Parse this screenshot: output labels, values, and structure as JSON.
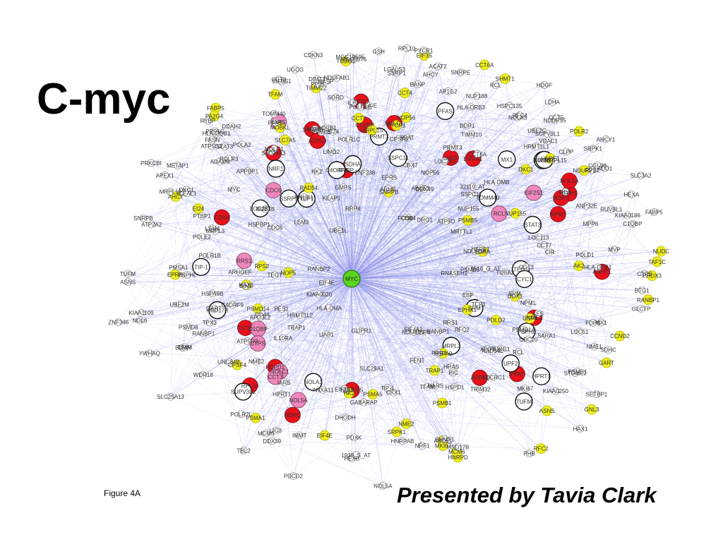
{
  "slide": {
    "title": "C-myc",
    "caption": "Figure 4A",
    "presenter": "Presented by Tavia Clark"
  },
  "colors": {
    "edge": "#8a90e8",
    "hub": "#5ad41e",
    "red": "#e8101a",
    "pink": "#ef86bc",
    "yellow": "#f0ef1c",
    "white": "#ffffff"
  },
  "network": {
    "hub": "MYC",
    "red_nodes": [
      "ARHT1",
      "NDUFB5",
      "C1QBP",
      "SDHC",
      "NOLC1",
      "SNRPE",
      "IARS",
      "RPL10",
      "RYBP",
      "ATP5O",
      "CTPS",
      "PPAT",
      "BOP1",
      "SLC25A3",
      "NOL5A",
      "HSPD1",
      "EIF4A1",
      "APEX1",
      "CCT5",
      "NPM1",
      "TFRC",
      "NME1",
      "CDK4"
    ],
    "pink_nodes": [
      "C1QBP",
      "RCL",
      "NOLC1",
      "IARS",
      "RRS1",
      "CTPS",
      "CCT3",
      "NOL5A",
      "CDC6",
      "EIF2S1"
    ],
    "white_nodes": [
      "MX1",
      "NRF1",
      "TIP-1",
      "STAT3",
      "SDHA",
      "LOC283",
      "NOLA3",
      "PFAS",
      "HPRT1",
      "PSPHL",
      "MRPL3",
      "TEGT",
      "TCP1",
      "HSD17B",
      "TUFM",
      "LIMD2",
      "POLR1C",
      "SSPC11",
      "CYC1",
      "SRM",
      "SSRP1",
      "PRMT3",
      "C4ORF9",
      "TOMM40",
      "SUPV3L1",
      "UPF2"
    ],
    "yellow_nodes": [
      "PRDX3",
      "FABP5",
      "RANBP1",
      "AHCY",
      "PSMA5",
      "ABCE1",
      "CCND2",
      "TIMM22",
      "NOP5",
      "GNL3",
      "ASNS",
      "PSMB5",
      "POLR2",
      "TAF1C",
      "NOP56",
      "DKC1",
      "NME2",
      "HSPE1",
      "PSMA1",
      "MRPL15",
      "CCT7",
      "PSMB1",
      "NUDC",
      "PA2G4",
      "NUP155",
      "RAD54",
      "EPRS",
      "EIF3S",
      "HAX1",
      "PSMD14",
      "MOBKL",
      "EI24",
      "PYCR1",
      "SNRPB",
      "EIF4E",
      "HNRPD",
      "HK2",
      "SLC7A5",
      "GART",
      "SHMT1",
      "NDUFV1",
      "LDHA",
      "CCT4",
      "TUBG1",
      "DDX1",
      "POLD2",
      "EPHX1",
      "TRAP1",
      "MCM6",
      "SRPK1",
      "AK2",
      "TFAM",
      "CPSF4",
      "USP4",
      "CCT6A",
      "RFC2",
      "RPS2",
      "MKI67",
      "HSPA9"
    ],
    "labels": [
      "1938_S_AT",
      "PTBP1",
      "1516_G_AT",
      "ATP5O3",
      "RNASEH1",
      "HRMT1L2",
      "AHCY",
      "YWHAQ",
      "C1QBP",
      "PFAS",
      "HPRT1",
      "PSPHL",
      "MRPL19",
      "TOMM40",
      "MGC5576",
      "HDGF",
      "RANBP1",
      "FABP5",
      "UAP1",
      "TBL2",
      "NASP",
      "KIAA0186",
      "TFAM",
      "ABCE1",
      "ADD1",
      "DDAH2",
      "POLE2",
      "HRMT1L1",
      "HLA-DMB",
      "MSH6",
      "IL10RA",
      "BUB1B",
      "SRPK1",
      "MCM6",
      "NUP155",
      "PDCD2",
      "TUBA2",
      "HLA-DMA",
      "UGCG",
      "HIC",
      "RUVBL1",
      "PRR3",
      "UBE1L",
      "HLA-DRB3",
      "EPRS",
      "DDX39",
      "MPP6",
      "METAP1",
      "PPIH",
      "LSM3",
      "MX1",
      "NRF1",
      "TIP-1",
      "STAT3",
      "LOC283",
      "MRTTL1",
      "PSMC3",
      "AP1G2",
      "DDX49",
      "MEA",
      "TIMM10",
      "NDUFS5",
      "MGC19595",
      "32119_AT",
      "ZNF238",
      "HAX1",
      "NDUFS7",
      "PSMD14",
      "HEXA",
      "LOC113",
      "NDUFV1",
      "UBE2M",
      "UQCRC1",
      "BIN1",
      "EBP",
      "STOML2",
      "KIAA1109",
      "POLR2E",
      "EI24",
      "PYCR1",
      "SORD",
      "NOP56",
      "SDHC",
      "NOLC1",
      "MRPL3",
      "TEGT",
      "TCP1",
      "IARS",
      "HSD17B",
      "RRS1",
      "CTPS",
      "ATP5O",
      "PPAT",
      "SLC25A13",
      "CDK4",
      "CCT3",
      "CYC1",
      "SRM",
      "SSRP1",
      "PRMT3",
      "C4ORF9",
      "NOL5A",
      "SUPV3L1",
      "TUFM",
      "RCL",
      "RPL10",
      "LIMD2",
      "POLR1C",
      "SSPC11",
      "NOLA3",
      "BOP1",
      "SNRPE",
      "NPM1",
      "EIF4A1",
      "APEX1",
      "RYBP",
      "CCT5",
      "SHMT1",
      "GART",
      "ATP2A2",
      "POLR1B",
      "ARHGEF",
      "DIMT1",
      "EIF3S9",
      "POLR3",
      "ANP32E",
      "IMMT",
      "DKC1",
      "CDC6",
      "FEN1",
      "LIG3",
      "VDAC1",
      "NME2",
      "TRAP1",
      "RANBP1",
      "HSPA9B",
      "PSMB1",
      "UNC84B",
      "SETBP1",
      "GABARAP",
      "XPOT",
      "CD44",
      "ADAM8",
      "LGALS3",
      "ASNS",
      "GMPS",
      "HLA-DQB1",
      "MRPL15",
      "CCT7",
      "PSMB5",
      "RCL",
      "LDHA",
      "ILF3",
      "HNRPAB",
      "CBX7",
      "NUP188",
      "PRKCBI",
      "GLIPR1",
      "HLA-E",
      "ATP5G1",
      "RRP4",
      "CDKN3",
      "RFC4",
      "HSPBP1",
      "POLA2",
      "KIAA0020",
      "UBE2C",
      "CIR",
      "GSH",
      "ICEAL1",
      "NARS",
      "TPX3",
      "FDPS",
      "ACAT2",
      "CDC20",
      "APPBP1",
      "ANXA11",
      "SARA1",
      "BLMH",
      "PMSA1",
      "DRIM",
      "AHCY1",
      "NOL6",
      "MVP",
      "WDR18",
      "AES",
      "GLCTP",
      "TUBG1",
      "HK2",
      "SLC29A1",
      "CPSF4",
      "PPP5C",
      "BTG1",
      "CGI-96",
      "HSPE1",
      "USP4",
      "POLD1",
      "PDXK",
      "HSPC135",
      "FOSB",
      "KIAA0250",
      "ARHB",
      "DHODH",
      "BANP",
      "RNUT1",
      "SLC3A2",
      "FASN",
      "PHB",
      "TRIM32",
      "ADRB1",
      "ZNF346",
      "PSMD8",
      "KEAP1",
      "HRAS",
      "CCT6A",
      "HLA-DPB1",
      "MKI67",
      "RANBP2",
      "SNRPB",
      "AFG3L2",
      "NME1",
      "PES1",
      "DRG1",
      "RPS2",
      "CLPP",
      "EIF3S1",
      "HEXB",
      "EIF4E",
      "RFC2",
      "LOC51",
      "RAD54L",
      "POLR2L",
      "CXX1",
      "NDUFAB1",
      "CCT2",
      "HSPD1",
      "LSM4",
      "MYC"
    ]
  }
}
